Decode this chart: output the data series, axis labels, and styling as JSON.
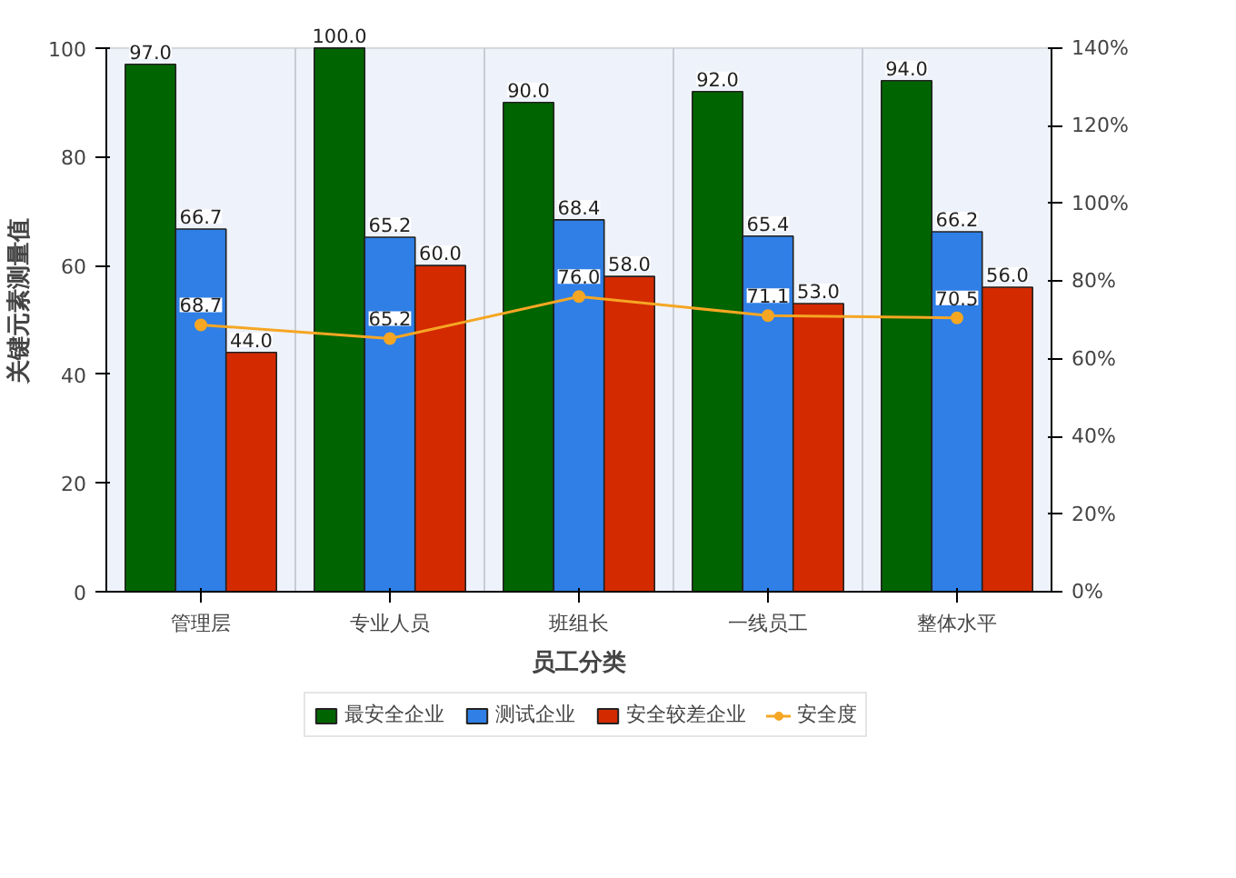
{
  "chart_data": {
    "type": "bar",
    "xlabel": "员工分类",
    "ylabel": "关键元素测量值",
    "categories": [
      "管理层",
      "专业人员",
      "班组长",
      "一线员工",
      "整体水平"
    ],
    "series": [
      {
        "name": "最安全企业",
        "color": "#006400",
        "values": [
          97.0,
          100.0,
          90.0,
          92.0,
          94.0
        ],
        "value_labels": [
          "97.0",
          "100.0",
          "90.0",
          "92.0",
          "94.0"
        ]
      },
      {
        "name": "测试企业",
        "color": "#2f7fe6",
        "values": [
          66.7,
          65.2,
          68.4,
          65.4,
          66.2
        ],
        "value_labels": [
          "66.7",
          "65.2",
          "68.4",
          "65.4",
          "66.2"
        ]
      },
      {
        "name": "安全较差企业",
        "color": "#d42a00",
        "values": [
          44.0,
          60.0,
          58.0,
          53.0,
          56.0
        ],
        "value_labels": [
          "44.0",
          "60.0",
          "58.0",
          "53.0",
          "56.0"
        ]
      },
      {
        "name": "安全度",
        "color": "#f5a623",
        "type": "line",
        "axis": "y2",
        "marker": "circle",
        "values": [
          68.7,
          65.2,
          76.0,
          71.1,
          70.5
        ],
        "value_labels": [
          "68.7",
          "65.2",
          "76.0",
          "71.1",
          "70.5"
        ]
      }
    ],
    "ylim": [
      0,
      100
    ],
    "yticks": [
      0,
      20,
      40,
      60,
      80,
      100
    ],
    "y2lim": [
      0,
      140
    ],
    "y2ticks": [
      {
        "value": 0,
        "label": "0%"
      },
      {
        "value": 20,
        "label": "20%"
      },
      {
        "value": 40,
        "label": "40%"
      },
      {
        "value": 60,
        "label": "60%"
      },
      {
        "value": 80,
        "label": "80%"
      },
      {
        "value": 100,
        "label": "100%"
      },
      {
        "value": 120,
        "label": "120%"
      },
      {
        "value": 140,
        "label": "140%"
      }
    ],
    "data_labels": true,
    "grid": "x",
    "legend": "bottom"
  }
}
